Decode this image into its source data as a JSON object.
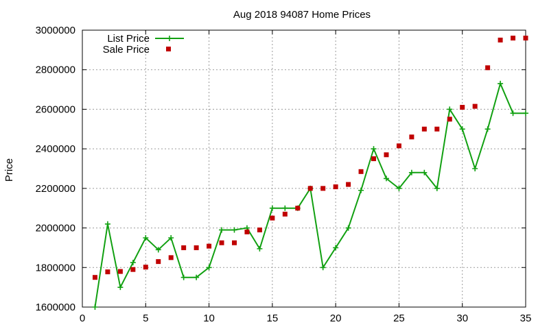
{
  "chart_data": {
    "type": "line",
    "title": "Aug 2018 94087 Home Prices",
    "xlabel": "",
    "ylabel": "Price",
    "xlim": [
      0,
      35
    ],
    "ylim": [
      1600000,
      3000000
    ],
    "xticks": [
      0,
      5,
      10,
      15,
      20,
      25,
      30,
      35
    ],
    "yticks": [
      1600000,
      1800000,
      2000000,
      2200000,
      2400000,
      2600000,
      2800000,
      3000000
    ],
    "grid": true,
    "legend_position": "top-left",
    "x": [
      1,
      2,
      3,
      4,
      5,
      6,
      7,
      8,
      9,
      10,
      11,
      12,
      13,
      14,
      15,
      16,
      17,
      18,
      19,
      20,
      21,
      22,
      23,
      24,
      25,
      26,
      27,
      28,
      29,
      30,
      31,
      32,
      33,
      34,
      35
    ],
    "series": [
      {
        "name": "List Price",
        "style": "lines+crosses",
        "color": "#11a011",
        "values": [
          1600000,
          2020000,
          1700000,
          1825000,
          1950000,
          1890000,
          1950000,
          1750000,
          1750000,
          1800000,
          1990000,
          1990000,
          2000000,
          1895000,
          2100000,
          2100000,
          2100000,
          2200000,
          1800000,
          1900000,
          2000000,
          2190000,
          2400000,
          2250000,
          2200000,
          2280000,
          2280000,
          2200000,
          2600000,
          2500000,
          2300000,
          2500000,
          2730000,
          2580000,
          2580000
        ]
      },
      {
        "name": "Sale Price",
        "style": "squares",
        "color": "#c00000",
        "values": [
          1750000,
          1778000,
          1780000,
          1790000,
          1802000,
          1830000,
          1850000,
          1900000,
          1900000,
          1908000,
          1925000,
          1925000,
          1980000,
          1990000,
          2050000,
          2070000,
          2100000,
          2200000,
          2200000,
          2208000,
          2220000,
          2285000,
          2350000,
          2370000,
          2415000,
          2460000,
          2500000,
          2500000,
          2550000,
          2610000,
          2615000,
          2810000,
          2950000,
          2960000,
          2960000
        ]
      }
    ]
  }
}
